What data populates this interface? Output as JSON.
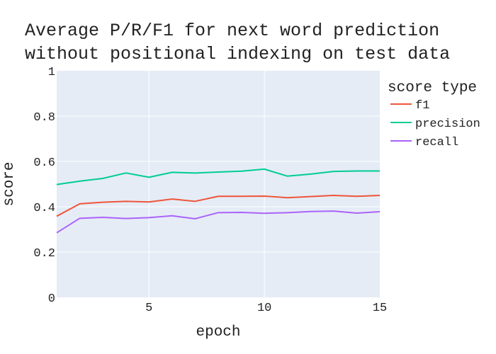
{
  "chart_data": {
    "type": "line",
    "title_lines": [
      "Average P/R/F1 for next word prediction",
      "without positional indexing on test data"
    ],
    "xlabel": "epoch",
    "ylabel": "score",
    "xlim": [
      1,
      15
    ],
    "ylim": [
      0,
      1
    ],
    "x_ticks": [
      5,
      10,
      15
    ],
    "y_ticks": [
      0,
      0.2,
      0.4,
      0.6,
      0.8,
      1
    ],
    "y_tick_labels": [
      "0",
      "0.2",
      "0.4",
      "0.6",
      "0.8",
      "1"
    ],
    "grid": true,
    "legend_title": "score type",
    "legend_position": "right",
    "x": [
      1,
      2,
      3,
      4,
      5,
      6,
      7,
      8,
      9,
      10,
      11,
      12,
      13,
      14,
      15
    ],
    "series": [
      {
        "name": "f1",
        "color": "#EF553B",
        "values": [
          0.358,
          0.413,
          0.42,
          0.424,
          0.421,
          0.434,
          0.424,
          0.446,
          0.446,
          0.447,
          0.44,
          0.445,
          0.45,
          0.446,
          0.45
        ]
      },
      {
        "name": "precision",
        "color": "#00CC96",
        "values": [
          0.498,
          0.513,
          0.525,
          0.549,
          0.53,
          0.552,
          0.549,
          0.553,
          0.557,
          0.566,
          0.535,
          0.544,
          0.556,
          0.558,
          0.558
        ]
      },
      {
        "name": "recall",
        "color": "#AB63FA",
        "values": [
          0.285,
          0.349,
          0.353,
          0.348,
          0.352,
          0.36,
          0.347,
          0.374,
          0.375,
          0.371,
          0.374,
          0.379,
          0.381,
          0.372,
          0.378
        ]
      }
    ]
  }
}
